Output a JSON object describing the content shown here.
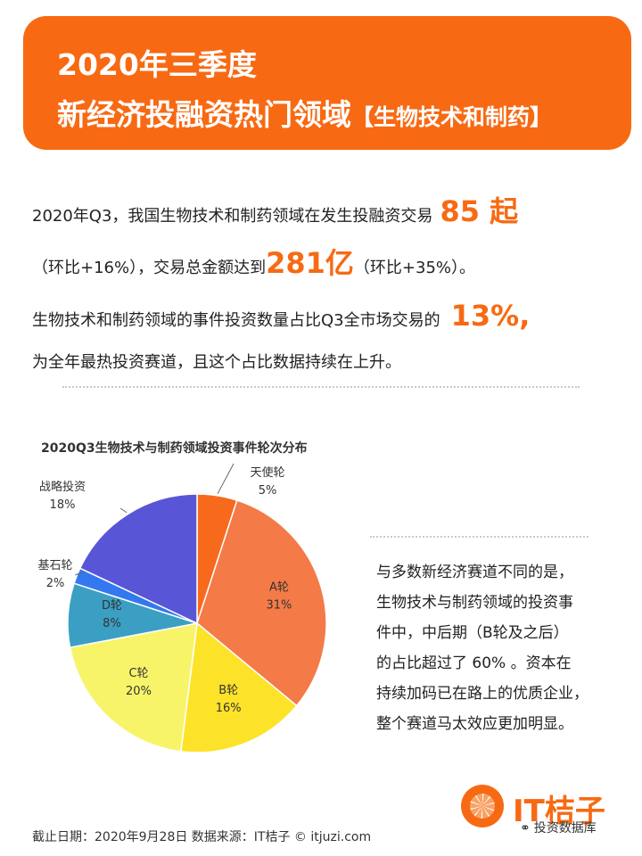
{
  "banner": {
    "line1": "2020年三季度",
    "line2_main": "新经济投融资热门领域",
    "line2_sub": "【生物技术和制药】"
  },
  "summary": {
    "p1_text": "2020年Q3，我国生物技术和制药领域在发生投融资交易",
    "p1_highlight": "85 起",
    "p2_pre": "（环比+16%），交易总金额达到",
    "p2_highlight": "281亿",
    "p2_post": "（环比+35%）。",
    "p3_text": "生物技术和制药领域的事件投资数量占比Q3全市场交易的",
    "p3_highlight": "13%,",
    "p4_text": "为全年最热投资赛道，且这个占比数据持续在上升。"
  },
  "chart_data": {
    "type": "pie",
    "title": "2020Q3生物技术与制药领域投资事件轮次分布",
    "slices": [
      {
        "name": "天使轮",
        "value": 5,
        "label": "5%",
        "color": "#f76a1d"
      },
      {
        "name": "A轮",
        "value": 31,
        "label": "31%",
        "color": "#f47a48"
      },
      {
        "name": "B轮",
        "value": 16,
        "label": "16%",
        "color": "#fce32a"
      },
      {
        "name": "C轮",
        "value": 20,
        "label": "20%",
        "color": "#f8f46a"
      },
      {
        "name": "D轮",
        "value": 8,
        "label": "8%",
        "color": "#3b9fc4"
      },
      {
        "name": "基石轮",
        "value": 2,
        "label": "2%",
        "color": "#3478ef"
      },
      {
        "name": "战略投资",
        "value": 18,
        "label": "18%",
        "color": "#5856d6"
      }
    ]
  },
  "side_note": {
    "lines": [
      "与多数新经济赛道不同的是，",
      "生物技术与制药领域的投资事",
      "件中，中后期（B轮及之后）",
      "的占比超过了 60% 。资本在",
      "持续加码已在路上的优质企业，",
      "整个赛道马太效应更加明显。"
    ]
  },
  "footer": {
    "text": "截止日期：2020年9月28日    数据来源：IT桔子 © itjuzi.com"
  },
  "logo": {
    "brand": "IT桔子"
  },
  "wechat": {
    "account": "投资数据库",
    "icon": "wechat-icon"
  }
}
